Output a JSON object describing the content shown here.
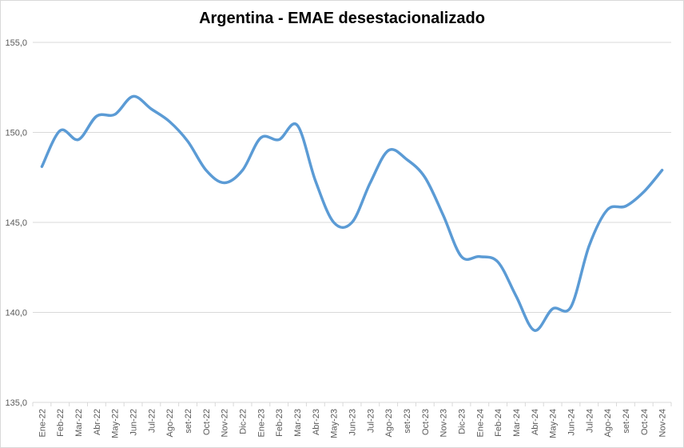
{
  "chart_data": {
    "type": "line",
    "title": "Argentina - EMAE desestacionalizado",
    "xlabel": "",
    "ylabel": "",
    "ylim": [
      135,
      155
    ],
    "yticks": [
      "135,0",
      "140,0",
      "145,0",
      "150,0",
      "155,0"
    ],
    "ytick_values": [
      135,
      140,
      145,
      150,
      155
    ],
    "grid": true,
    "legend": "none",
    "categories": [
      "Ene-22",
      "Feb-22",
      "Mar-22",
      "Abr-22",
      "May-22",
      "Jun-22",
      "Jul-22",
      "Ago-22",
      "set-22",
      "Oct-22",
      "Nov-22",
      "Dic-22",
      "Ene-23",
      "Feb-23",
      "Mar-23",
      "Abr-23",
      "May-23",
      "Jun-23",
      "Jul-23",
      "Ago-23",
      "set-23",
      "Oct-23",
      "Nov-23",
      "Dic-23",
      "Ene-24",
      "Feb-24",
      "Mar-24",
      "Abr-24",
      "May-24",
      "Jun-24",
      "Jul-24",
      "Ago-24",
      "set-24",
      "Oct-24",
      "Nov-24"
    ],
    "series": [
      {
        "color": "#5b9bd5",
        "values": [
          148.1,
          150.1,
          149.6,
          150.9,
          151.0,
          152.0,
          151.3,
          150.6,
          149.5,
          147.9,
          147.2,
          147.9,
          149.7,
          149.6,
          150.4,
          147.3,
          145.0,
          145.0,
          147.2,
          149.0,
          148.5,
          147.5,
          145.4,
          143.1,
          143.1,
          142.8,
          140.9,
          139.0,
          140.2,
          140.3,
          143.7,
          145.7,
          145.9,
          146.7,
          147.9
        ]
      }
    ],
    "colors": {
      "grid": "#d9d9d9",
      "axis_text": "#595959",
      "title": "#000000",
      "line": "#5b9bd5"
    }
  }
}
